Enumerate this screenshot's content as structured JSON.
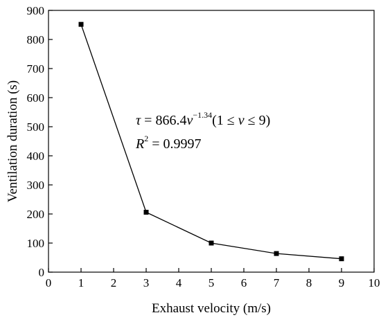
{
  "chart_data": {
    "type": "line",
    "xlabel": "Exhaust velocity (m/s)",
    "ylabel": "Ventilation duration (s)",
    "xlim": [
      0,
      10
    ],
    "ylim": [
      0,
      900
    ],
    "xticks": [
      0,
      1,
      2,
      3,
      4,
      5,
      6,
      7,
      8,
      9,
      10
    ],
    "yticks": [
      0,
      100,
      200,
      300,
      400,
      500,
      600,
      700,
      800,
      900
    ],
    "grid": false,
    "series": [
      {
        "x": [
          1,
          3,
          5,
          7,
          9
        ],
        "y": [
          852,
          206,
          100,
          64,
          46
        ],
        "marker": "square",
        "color": "#000000"
      }
    ],
    "annotations": {
      "equation": {
        "symbol": "τ",
        "equals": " = 866.4",
        "var": "v",
        "exponent": "−1.34",
        "range_open": "(1 ≤ ",
        "range_var": "v",
        "range_close": " ≤ 9)"
      },
      "r2": {
        "symbol": "R",
        "exponent": "2",
        "value": " = 0.9997"
      }
    }
  }
}
